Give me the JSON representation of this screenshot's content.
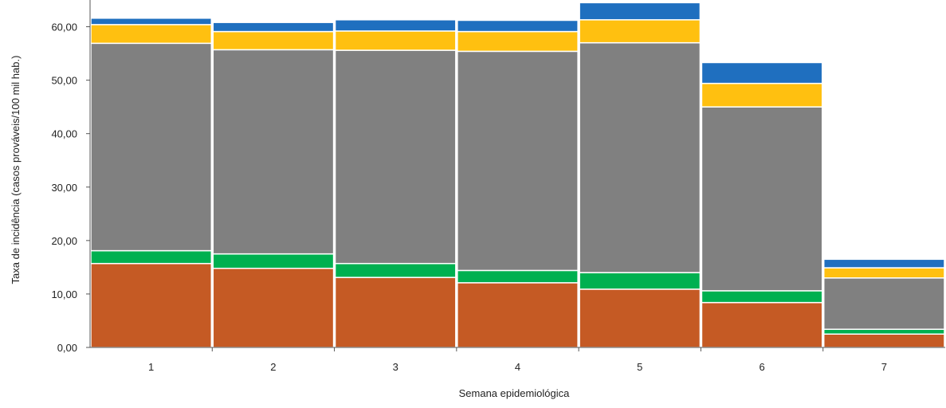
{
  "chart_data": {
    "type": "bar",
    "stacked": true,
    "title": "",
    "xlabel": "Semana epidemiológica",
    "ylabel": "Taxa de incidência (casos prováveis/100 mil hab.)",
    "ylim": [
      0,
      65
    ],
    "yticks": [
      "0,00",
      "10,00",
      "20,00",
      "30,00",
      "40,00",
      "50,00",
      "60,00"
    ],
    "ytick_values": [
      0,
      10,
      20,
      30,
      40,
      50,
      60
    ],
    "grid": false,
    "legend": "none",
    "categories": [
      "1",
      "2",
      "3",
      "4",
      "5",
      "6",
      "7"
    ],
    "series": [
      {
        "color": "#C55A24",
        "values": [
          15.7,
          14.8,
          13.1,
          12.1,
          10.9,
          8.4,
          2.5
        ]
      },
      {
        "color": "#00B050",
        "values": [
          2.4,
          2.7,
          2.6,
          2.3,
          3.1,
          2.2,
          0.9
        ]
      },
      {
        "color": "#808080",
        "values": [
          38.8,
          38.2,
          39.9,
          41.0,
          43.0,
          34.4,
          9.6
        ]
      },
      {
        "color": "#FFC010",
        "values": [
          3.5,
          3.4,
          3.6,
          3.7,
          4.3,
          4.4,
          1.9
        ]
      },
      {
        "color": "#1F6FBF",
        "values": [
          1.2,
          1.7,
          2.1,
          2.1,
          3.2,
          3.9,
          1.6
        ]
      }
    ]
  }
}
